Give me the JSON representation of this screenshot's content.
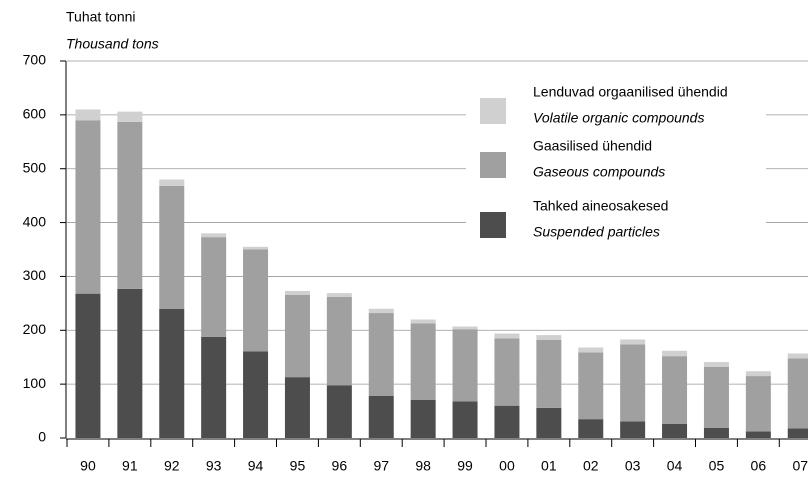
{
  "chart_data": {
    "type": "stacked_bar",
    "y_label": "Tuhat tonni",
    "y_label_en": "Thousand tons",
    "categories": [
      "90",
      "91",
      "92",
      "93",
      "94",
      "95",
      "96",
      "97",
      "98",
      "99",
      "00",
      "01",
      "02",
      "03",
      "04",
      "05",
      "06",
      "07"
    ],
    "series": [
      {
        "name": "Tahked aineosakesed",
        "name_en": "Suspended particles",
        "color": "#4d4d4d",
        "values": [
          268,
          277,
          240,
          188,
          161,
          113,
          98,
          78,
          71,
          68,
          60,
          56,
          35,
          31,
          26,
          19,
          12,
          18
        ]
      },
      {
        "name": "Gaasilised ühendid",
        "name_en": "Gaseous compounds",
        "color": "#a0a0a0",
        "values": [
          322,
          310,
          228,
          185,
          189,
          153,
          164,
          154,
          142,
          134,
          125,
          126,
          124,
          143,
          126,
          113,
          103,
          130
        ]
      },
      {
        "name": "Lenduvad orgaanilised ühendid",
        "name_en": "Volatile organic compounds",
        "color": "#d0d0d0",
        "values": [
          20,
          19,
          12,
          7,
          5,
          7,
          7,
          8,
          7,
          5,
          9,
          9,
          9,
          9,
          10,
          9,
          9,
          9
        ]
      }
    ],
    "ylim": [
      0,
      700
    ],
    "yticks": [
      0,
      100,
      200,
      300,
      400,
      500,
      600,
      700
    ],
    "grid": true
  }
}
